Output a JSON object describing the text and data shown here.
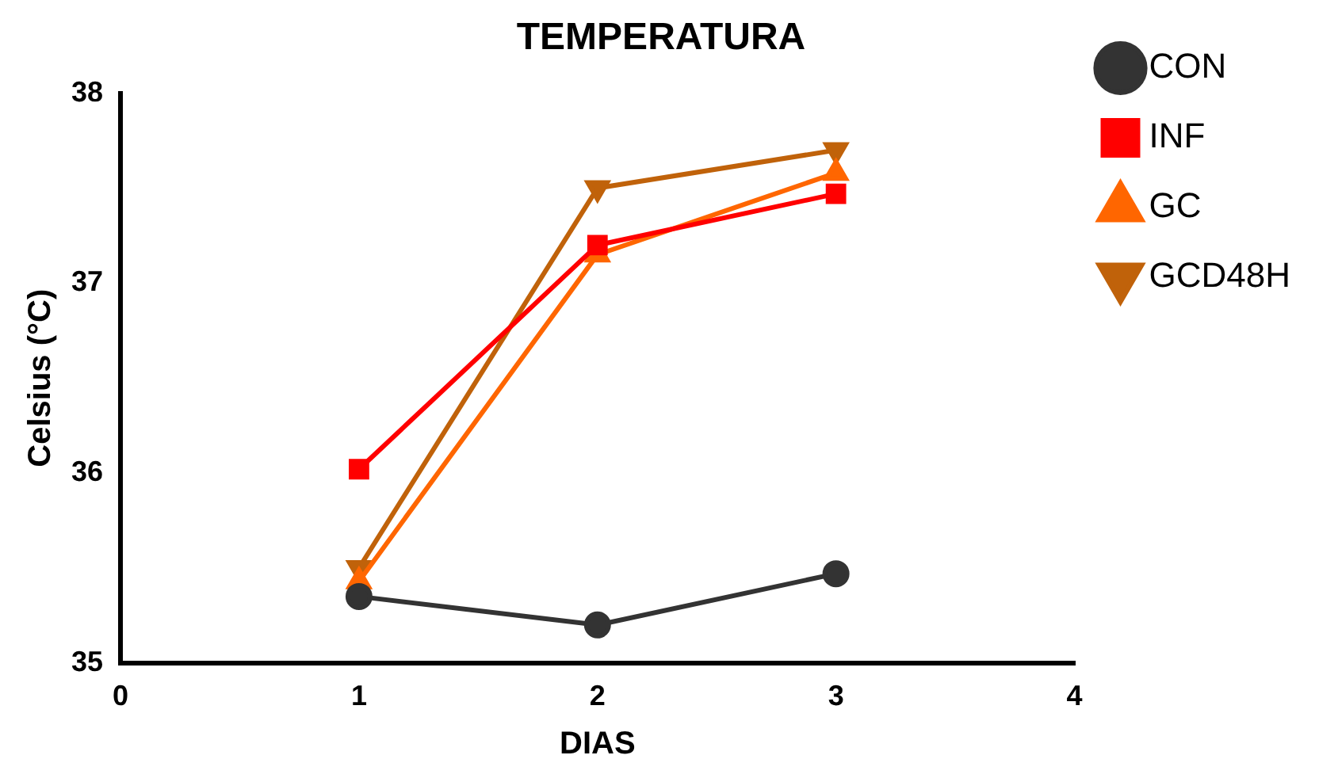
{
  "chart_data": {
    "type": "line",
    "title": "TEMPERATURA",
    "xlabel": "DIAS",
    "ylabel": "Celsius (°C)",
    "x": [
      1,
      2,
      3
    ],
    "xlim": [
      0,
      4
    ],
    "xticks": [
      0,
      1,
      2,
      3,
      4
    ],
    "ylim": [
      35,
      38
    ],
    "yticks": [
      35,
      36,
      37,
      38
    ],
    "grid": false,
    "legend": "right",
    "line_style": "solid",
    "series": [
      {
        "name": "CON",
        "color": "#333333",
        "marker": "circle",
        "values": [
          35.35,
          35.2,
          35.47
        ]
      },
      {
        "name": "INF",
        "color": "#ff0000",
        "marker": "square",
        "values": [
          36.02,
          37.2,
          37.47
        ]
      },
      {
        "name": "GC",
        "color": "#ff6600",
        "marker": "triangle",
        "values": [
          35.43,
          37.15,
          37.58
        ]
      },
      {
        "name": "GCD48H",
        "color": "#c0620a",
        "marker": "triangle_down",
        "values": [
          35.5,
          37.5,
          37.7
        ]
      }
    ]
  }
}
